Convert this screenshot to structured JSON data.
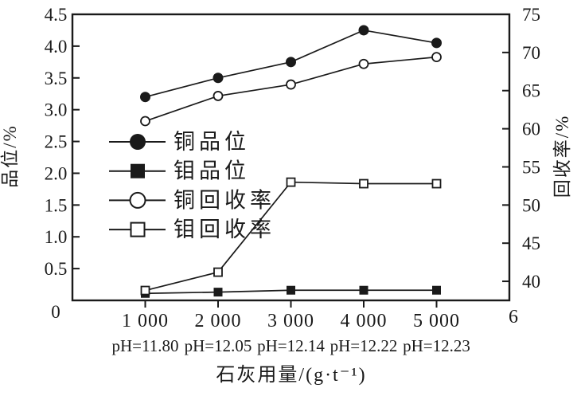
{
  "figure": {
    "background": "#ffffff",
    "ink_color": "#1a1a1a"
  },
  "chart_data": {
    "type": "line",
    "title": "",
    "x": [
      1000,
      2000,
      3000,
      4000,
      5000
    ],
    "x_tick_labels": [
      "1 000",
      "2 000",
      "3 000",
      "4 000",
      "5 000"
    ],
    "x_end_label": "6",
    "xlim": [
      0,
      6000
    ],
    "xlabel": "石灰用量/(g·t⁻¹)",
    "ph_annotations": [
      "pH=11.80",
      "pH=12.05",
      "pH=12.14",
      "pH=12.22",
      "pH=12.23"
    ],
    "left_axis": {
      "label": "品位/%",
      "lim": [
        0,
        4.5
      ],
      "ticks": [
        0,
        0.5,
        1,
        1.5,
        2,
        2.5,
        3,
        3.5,
        4,
        4.5
      ],
      "tick_labels": [
        "0",
        "0.5",
        "1.0",
        "1.5",
        "2.0",
        "2.5",
        "3.0",
        "3.5",
        "4.0",
        "4.5"
      ]
    },
    "right_axis": {
      "label": "回收率/%",
      "lim": [
        37.5,
        75
      ],
      "ticks": [
        40,
        45,
        50,
        55,
        60,
        65,
        70,
        75
      ],
      "tick_labels": [
        "40",
        "45",
        "50",
        "55",
        "60",
        "65",
        "70",
        "75"
      ]
    },
    "series": [
      {
        "id": "copper-grade",
        "name": "铜品位",
        "axis": "left",
        "marker": "circle-filled",
        "values": [
          3.2,
          3.5,
          3.75,
          4.25,
          4.05
        ]
      },
      {
        "id": "moly-grade",
        "name": "钼品位",
        "axis": "left",
        "marker": "square-filled",
        "values": [
          0.11,
          0.13,
          0.16,
          0.16,
          0.16
        ]
      },
      {
        "id": "copper-recovery",
        "name": "铜回收率",
        "axis": "right",
        "marker": "circle-open",
        "values": [
          61.0,
          64.3,
          65.8,
          68.5,
          69.4
        ]
      },
      {
        "id": "moly-recovery",
        "name": "钼回收率",
        "axis": "right",
        "marker": "square-open",
        "values": [
          38.8,
          41.2,
          53.0,
          52.8,
          52.8
        ]
      }
    ],
    "legend": {
      "position": "inside-left"
    },
    "grid": false
  }
}
